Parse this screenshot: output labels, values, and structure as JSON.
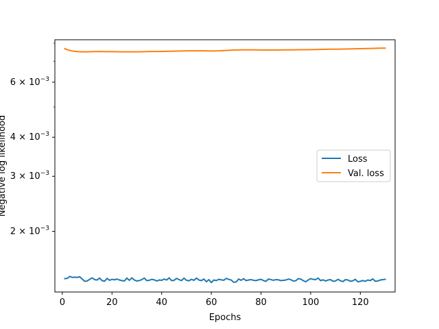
{
  "chart_data": {
    "type": "line",
    "xlabel": "Epochs",
    "ylabel": "Negative log likelihood",
    "xlim": [
      -3,
      134
    ],
    "ylim": [
      0.00128,
      0.0082
    ],
    "yscale": "log",
    "x_ticks": [
      0,
      20,
      40,
      60,
      80,
      100,
      120
    ],
    "y_major_ticks": [
      {
        "value": 0.002,
        "label": "2 × 10",
        "exp": "−3"
      },
      {
        "value": 0.003,
        "label": "3 × 10",
        "exp": "−3"
      },
      {
        "value": 0.004,
        "label": "4 × 10",
        "exp": "−3"
      },
      {
        "value": 0.006,
        "label": "6 × 10",
        "exp": "−3"
      }
    ],
    "y_minor_ticks": [
      0.005,
      0.007,
      0.008
    ],
    "legend": {
      "placement": "center-right"
    },
    "grid": false,
    "series": [
      {
        "name": "Loss",
        "color": "#1f77b4",
        "x": [
          1,
          2,
          3,
          4,
          5,
          6,
          7,
          8,
          9,
          10,
          11,
          12,
          13,
          14,
          15,
          16,
          17,
          18,
          19,
          20,
          21,
          22,
          23,
          24,
          25,
          26,
          27,
          28,
          29,
          30,
          31,
          32,
          33,
          34,
          35,
          36,
          37,
          38,
          39,
          40,
          41,
          42,
          43,
          44,
          45,
          46,
          47,
          48,
          49,
          50,
          51,
          52,
          53,
          54,
          55,
          56,
          57,
          58,
          59,
          60,
          61,
          62,
          63,
          64,
          65,
          66,
          67,
          68,
          69,
          70,
          71,
          72,
          73,
          74,
          75,
          76,
          77,
          78,
          79,
          80,
          81,
          82,
          83,
          84,
          85,
          86,
          87,
          88,
          89,
          90,
          91,
          92,
          93,
          94,
          95,
          96,
          97,
          98,
          99,
          100,
          101,
          102,
          103,
          104,
          105,
          106,
          107,
          108,
          109,
          110,
          111,
          112,
          113,
          114,
          115,
          116,
          117,
          118,
          119,
          120,
          121,
          122,
          123,
          124,
          125,
          126,
          127,
          128,
          129,
          130
        ],
        "values": [
          0.001412,
          0.001415,
          0.001435,
          0.001425,
          0.001428,
          0.001425,
          0.001432,
          0.001408,
          0.001385,
          0.001388,
          0.001405,
          0.00142,
          0.001402,
          0.001398,
          0.001418,
          0.001392,
          0.001385,
          0.001415,
          0.001395,
          0.001405,
          0.0014,
          0.001408,
          0.001398,
          0.001392,
          0.001388,
          0.001418,
          0.001395,
          0.00142,
          0.001398,
          0.001388,
          0.001392,
          0.001402,
          0.001418,
          0.001392,
          0.001395,
          0.001405,
          0.0014,
          0.001388,
          0.001398,
          0.001395,
          0.001408,
          0.001398,
          0.00142,
          0.001392,
          0.001395,
          0.001415,
          0.001402,
          0.001392,
          0.001418,
          0.001395,
          0.00139,
          0.001405,
          0.001395,
          0.001418,
          0.001398,
          0.001392,
          0.001408,
          0.00138,
          0.001402,
          0.001372,
          0.001398,
          0.001392,
          0.001405,
          0.0014,
          0.001395,
          0.001415,
          0.001405,
          0.001398,
          0.001375,
          0.001378,
          0.001408,
          0.001395,
          0.001412,
          0.001392,
          0.001398,
          0.001402,
          0.001395,
          0.001392,
          0.0014,
          0.001405,
          0.001392,
          0.001385,
          0.001408,
          0.001402,
          0.001395,
          0.001402,
          0.0014,
          0.001392,
          0.001395,
          0.001398,
          0.001408,
          0.001402,
          0.001388,
          0.00139,
          0.001412,
          0.001408,
          0.001392,
          0.00138,
          0.001398,
          0.001412,
          0.001405,
          0.001402,
          0.001418,
          0.001392,
          0.0014,
          0.001388,
          0.001398,
          0.001402,
          0.001385,
          0.001388,
          0.001405,
          0.00139,
          0.001382,
          0.001402,
          0.001398,
          0.001385,
          0.00139,
          0.001405,
          0.00138,
          0.001385,
          0.001392,
          0.001385,
          0.001398,
          0.001392,
          0.00141,
          0.001385,
          0.001388,
          0.001398,
          0.001402,
          0.001405
        ]
      },
      {
        "name": "Val. loss",
        "color": "#ff7f0e",
        "x": [
          1,
          2,
          3,
          4,
          5,
          6,
          7,
          8,
          9,
          10,
          12,
          15,
          18,
          21,
          24,
          27,
          30,
          33,
          36,
          39,
          42,
          45,
          48,
          51,
          54,
          57,
          60,
          63,
          66,
          69,
          72,
          75,
          78,
          81,
          84,
          87,
          90,
          93,
          96,
          99,
          102,
          105,
          108,
          111,
          114,
          117,
          120,
          123,
          126,
          128,
          130
        ],
        "values": [
          0.00768,
          0.00762,
          0.00758,
          0.00755,
          0.00753,
          0.00752,
          0.00751,
          0.0075,
          0.0075,
          0.0075,
          0.00751,
          0.00752,
          0.00751,
          0.00751,
          0.0075,
          0.0075,
          0.0075,
          0.00751,
          0.00752,
          0.00752,
          0.00753,
          0.00754,
          0.00755,
          0.00756,
          0.00756,
          0.00756,
          0.00755,
          0.00756,
          0.00758,
          0.0076,
          0.00761,
          0.00761,
          0.00761,
          0.0076,
          0.0076,
          0.0076,
          0.00761,
          0.00761,
          0.00762,
          0.00762,
          0.00763,
          0.00764,
          0.00765,
          0.00765,
          0.00766,
          0.00767,
          0.00768,
          0.00769,
          0.0077,
          0.00771,
          0.00771
        ]
      }
    ]
  }
}
